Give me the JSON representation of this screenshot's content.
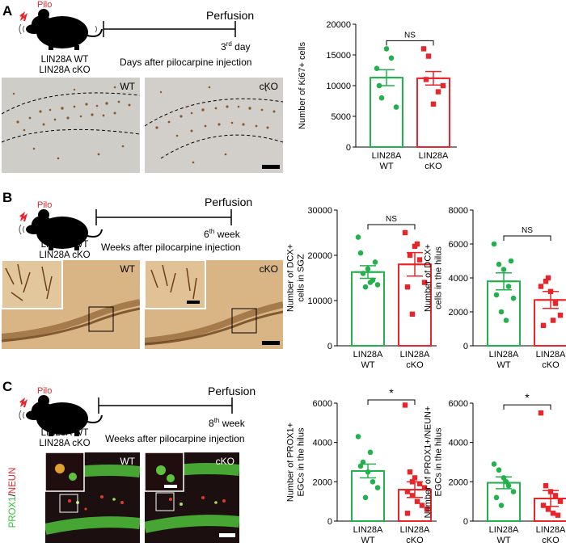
{
  "colors": {
    "wt": "#22b14c",
    "cko": "#e8252a",
    "pilo": "#e8252a",
    "nuclear_green": "#36c23a",
    "nuclear_red": "#d83a2a",
    "dab": "#8b5a2b"
  },
  "panel_letters": {
    "a": "A",
    "b": "B",
    "c": "C"
  },
  "panels": {
    "a": {
      "pilo_label": "Pilo",
      "mouse_labels": {
        "wt": "LIN28A WT",
        "cko": "LIN28A cKO"
      },
      "endpoint": "Perfusion",
      "time_num": "3",
      "time_sup": "rd",
      "time_unit": " day",
      "timeline_desc": "Days after pilocarpine injection",
      "photo_tags": {
        "left": "WT",
        "right": "cKO"
      }
    },
    "b": {
      "pilo_label": "Pilo",
      "mouse_labels": {
        "wt": "LIN28A WT",
        "cko": "LIN28A cKO"
      },
      "endpoint": "Perfusion",
      "time_num": "6",
      "time_sup": "th",
      "time_unit": " week",
      "timeline_desc": "Weeks after pilocarpine injection",
      "photo_tags": {
        "left": "WT",
        "right": "cKO"
      }
    },
    "c": {
      "pilo_label": "Pilo",
      "mouse_labels": {
        "wt": "LIN28A WT",
        "cko": "LIN28A cKO"
      },
      "endpoint": "Perfusion",
      "time_num": "8",
      "time_sup": "th",
      "time_unit": " week",
      "timeline_desc": "Weeks after pilocarpine injection",
      "photo_tags": {
        "left": "WT",
        "right": "cKO"
      },
      "stain_label_green": "PROX1",
      "stain_label_sep": "/",
      "stain_label_red": "NEUN"
    }
  },
  "chart_data": [
    {
      "type": "bar",
      "id": "a",
      "categories": [
        [
          "LIN28A",
          "WT"
        ],
        [
          "LIN28A",
          "cKO"
        ]
      ],
      "ylabel": [
        "Number of Ki67+ cells"
      ],
      "ylim": [
        0,
        20000
      ],
      "yticks": [
        0,
        5000,
        10000,
        15000,
        20000
      ],
      "means": [
        11300,
        11200
      ],
      "sem": [
        1300,
        1100
      ],
      "points": [
        [
          12800,
          8000,
          16000,
          14500,
          6500,
          10000
        ],
        [
          16000,
          14800,
          7000,
          9000,
          10000,
          11000
        ]
      ],
      "significance": "NS"
    },
    {
      "type": "bar",
      "id": "b1",
      "categories": [
        [
          "LIN28A",
          "WT"
        ],
        [
          "LIN28A",
          "cKO"
        ]
      ],
      "ylabel": [
        "Number of DCX+",
        "cells in SGZ"
      ],
      "ylim": [
        0,
        30000
      ],
      "yticks": [
        0,
        10000,
        20000,
        30000
      ],
      "means": [
        16300,
        18000
      ],
      "sem": [
        1400,
        2600
      ],
      "points": [
        [
          24000,
          16000,
          17000,
          14500,
          13500,
          20500,
          13000,
          14000,
          18500
        ],
        [
          25000,
          20000,
          22000,
          19000,
          14000,
          13000,
          7000,
          22500
        ]
      ],
      "significance": "NS"
    },
    {
      "type": "bar",
      "id": "b2",
      "categories": [
        [
          "LIN28A",
          "WT"
        ],
        [
          "LIN28A",
          "cKO"
        ]
      ],
      "ylabel": [
        "Number of DCX+",
        "cells in the hilus"
      ],
      "ylim": [
        0,
        8000
      ],
      "yticks": [
        0,
        2000,
        4000,
        6000,
        8000
      ],
      "means": [
        3800,
        2700
      ],
      "sem": [
        500,
        500
      ],
      "points": [
        [
          6000,
          4800,
          4500,
          3500,
          2800,
          3000,
          2000,
          1500,
          5000
        ],
        [
          3500,
          3800,
          3200,
          2500,
          1800,
          1200,
          4000,
          1500
        ]
      ],
      "significance": "NS"
    },
    {
      "type": "bar",
      "id": "c1",
      "categories": [
        [
          "LIN28A",
          "WT"
        ],
        [
          "LIN28A",
          "cKO"
        ]
      ],
      "ylabel": [
        "Number of PROX1+",
        "EGCs in the hilus"
      ],
      "ylim": [
        0,
        6000
      ],
      "yticks": [
        0,
        2000,
        4000,
        6000
      ],
      "means": [
        2550,
        1600
      ],
      "sem": [
        350,
        400
      ],
      "points": [
        [
          4300,
          3000,
          2500,
          2000,
          1700,
          2800,
          1200,
          3500
        ],
        [
          5900,
          2500,
          2200,
          1900,
          1700,
          1500,
          1300,
          1000,
          800,
          600,
          400,
          2000
        ]
      ],
      "significance": "*"
    },
    {
      "type": "bar",
      "id": "c2",
      "categories": [
        [
          "LIN28A",
          "WT"
        ],
        [
          "LIN28A",
          "cKO"
        ]
      ],
      "ylabel": [
        "Number of PROX1+/NEUN+",
        "EGCs in the hilus"
      ],
      "ylim": [
        0,
        6000
      ],
      "yticks": [
        0,
        2000,
        4000,
        6000
      ],
      "means": [
        1950,
        1150
      ],
      "sem": [
        300,
        400
      ],
      "points": [
        [
          2900,
          2600,
          2200,
          1800,
          1500,
          1200,
          800,
          2000
        ],
        [
          5500,
          1800,
          1500,
          1300,
          1000,
          800,
          600,
          400,
          300
        ]
      ],
      "significance": "*"
    }
  ]
}
